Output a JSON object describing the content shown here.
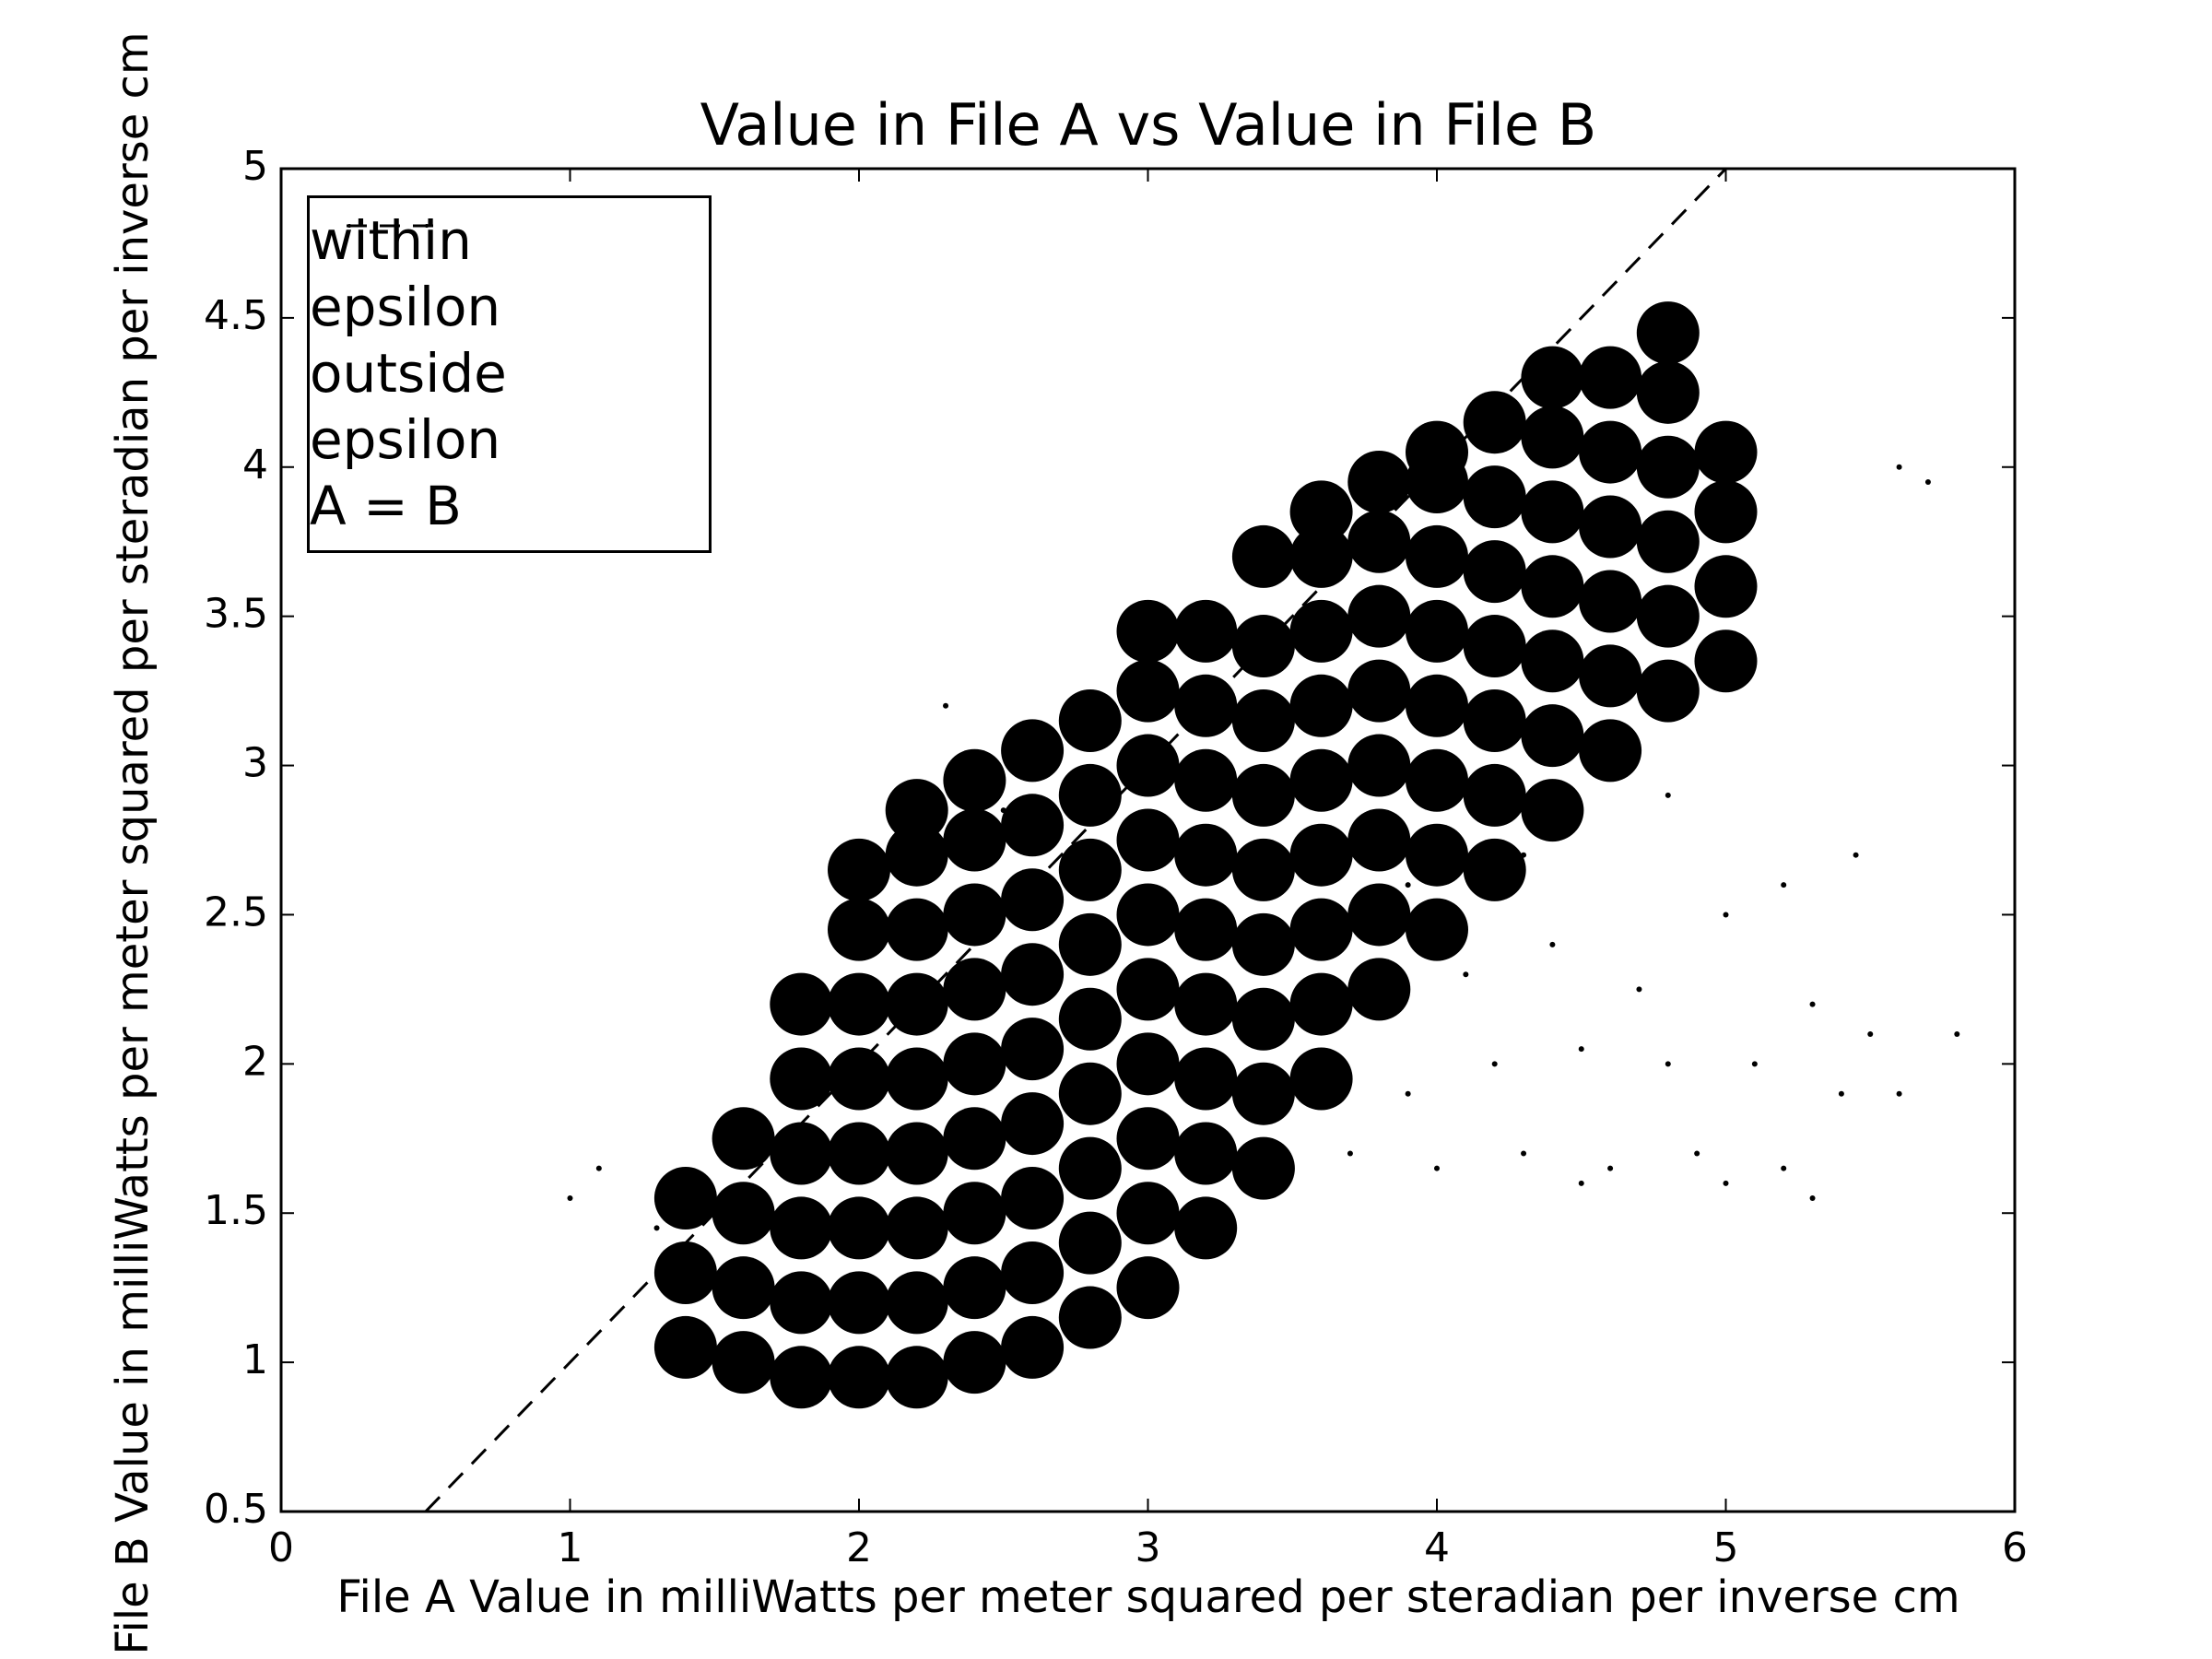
{
  "chart_data": {
    "type": "scatter",
    "title": "Value in File A vs Value in File B",
    "x_label": "File A Value in milliWatts per meter squared per steradian per inverse cm",
    "y_label": "File B Value in milliWatts per meter squared per steradian per inverse cm",
    "xlim": [
      0,
      6
    ],
    "ylim": [
      0.5,
      5
    ],
    "xticks": [
      0,
      1,
      2,
      3,
      4,
      5,
      6
    ],
    "yticks": [
      0.5,
      1,
      1.5,
      2,
      2.5,
      3,
      3.5,
      4,
      4.5,
      5
    ],
    "grid": false,
    "legend": "upper left",
    "series": [
      {
        "name": "within epsilon",
        "color": "#000000",
        "x": [
          1.4,
          1.4,
          1.4,
          1.6,
          1.6,
          1.6,
          1.6,
          1.8,
          1.8,
          1.8,
          1.8,
          1.8,
          1.8,
          2.0,
          2.0,
          2.0,
          2.0,
          2.0,
          2.0,
          2.0,
          2.0,
          2.2,
          2.2,
          2.2,
          2.2,
          2.2,
          2.2,
          2.2,
          2.2,
          2.2,
          2.4,
          2.4,
          2.4,
          2.4,
          2.4,
          2.4,
          2.4,
          2.4,
          2.4,
          2.6,
          2.6,
          2.6,
          2.6,
          2.6,
          2.6,
          2.6,
          2.6,
          2.6,
          2.8,
          2.8,
          2.8,
          2.8,
          2.8,
          2.8,
          2.8,
          2.8,
          2.8,
          3.0,
          3.0,
          3.0,
          3.0,
          3.0,
          3.0,
          3.0,
          3.0,
          3.0,
          3.0,
          3.2,
          3.2,
          3.2,
          3.2,
          3.2,
          3.2,
          3.2,
          3.2,
          3.2,
          3.4,
          3.4,
          3.4,
          3.4,
          3.4,
          3.4,
          3.4,
          3.4,
          3.4,
          3.6,
          3.6,
          3.6,
          3.6,
          3.6,
          3.6,
          3.6,
          3.6,
          3.6,
          3.8,
          3.8,
          3.8,
          3.8,
          3.8,
          3.8,
          3.8,
          3.8,
          4.0,
          4.0,
          4.0,
          4.0,
          4.0,
          4.0,
          4.0,
          4.0,
          4.2,
          4.2,
          4.2,
          4.2,
          4.2,
          4.2,
          4.2,
          4.4,
          4.4,
          4.4,
          4.4,
          4.4,
          4.4,
          4.4,
          4.6,
          4.6,
          4.6,
          4.6,
          4.6,
          4.6,
          4.8,
          4.8,
          4.8,
          4.8,
          4.8,
          4.8,
          5.0,
          5.0,
          5.0,
          5.0
        ],
        "values": [
          1.05,
          1.3,
          1.55,
          1.0,
          1.25,
          1.5,
          1.75,
          0.95,
          1.2,
          1.45,
          1.7,
          1.95,
          2.2,
          0.95,
          1.2,
          1.45,
          1.7,
          1.95,
          2.2,
          2.45,
          2.65,
          0.95,
          1.2,
          1.45,
          1.7,
          1.95,
          2.2,
          2.45,
          2.7,
          2.85,
          1.0,
          1.25,
          1.5,
          1.75,
          2.0,
          2.25,
          2.5,
          2.75,
          2.95,
          1.05,
          1.3,
          1.55,
          1.8,
          2.05,
          2.3,
          2.55,
          2.8,
          3.05,
          1.15,
          1.4,
          1.65,
          1.9,
          2.15,
          2.4,
          2.65,
          2.9,
          3.15,
          1.25,
          1.5,
          1.75,
          2.0,
          2.25,
          2.5,
          2.75,
          3.0,
          3.25,
          3.45,
          1.45,
          1.7,
          1.95,
          2.2,
          2.45,
          2.7,
          2.95,
          3.2,
          3.45,
          1.65,
          1.9,
          2.15,
          2.4,
          2.65,
          2.9,
          3.15,
          3.4,
          3.7,
          1.95,
          2.2,
          2.45,
          2.7,
          2.95,
          3.2,
          3.45,
          3.7,
          3.85,
          2.25,
          2.5,
          2.75,
          3.0,
          3.25,
          3.5,
          3.75,
          3.95,
          2.45,
          2.7,
          2.95,
          3.2,
          3.45,
          3.7,
          3.95,
          4.05,
          2.65,
          2.9,
          3.15,
          3.4,
          3.65,
          3.9,
          4.15,
          2.85,
          3.1,
          3.35,
          3.6,
          3.85,
          4.1,
          4.3,
          3.05,
          3.3,
          3.55,
          3.8,
          4.05,
          4.3,
          3.25,
          3.5,
          3.75,
          4.0,
          4.25,
          4.45,
          3.35,
          3.6,
          3.85,
          4.05
        ]
      },
      {
        "name": "outside epsilon",
        "color": "#000000",
        "x": [
          3.7,
          3.9,
          4.0,
          4.2,
          4.3,
          4.5,
          4.6,
          4.8,
          4.9,
          5.1,
          5.2,
          5.4,
          4.1,
          4.4,
          4.7,
          5.0,
          5.3,
          5.5,
          3.9,
          4.3,
          4.8,
          5.2,
          5.6,
          5.8,
          4.5,
          5.0,
          5.3,
          5.45,
          5.7,
          5.6,
          1.0,
          1.1,
          1.3,
          2.3,
          2.5
        ],
        "values": [
          1.7,
          1.9,
          1.65,
          2.0,
          1.7,
          2.05,
          1.65,
          2.0,
          1.7,
          2.0,
          1.65,
          1.9,
          2.3,
          2.4,
          2.25,
          2.5,
          2.2,
          2.1,
          2.6,
          2.7,
          2.9,
          2.6,
          1.9,
          2.1,
          1.6,
          1.6,
          1.55,
          2.7,
          3.95,
          4.0,
          1.55,
          1.65,
          1.45,
          3.2,
          2.85
        ]
      },
      {
        "name": "A = B",
        "color": "#000000",
        "type": "line",
        "style": "dashed",
        "x": [
          0.5,
          5
        ],
        "values": [
          0.5,
          5
        ]
      }
    ]
  }
}
